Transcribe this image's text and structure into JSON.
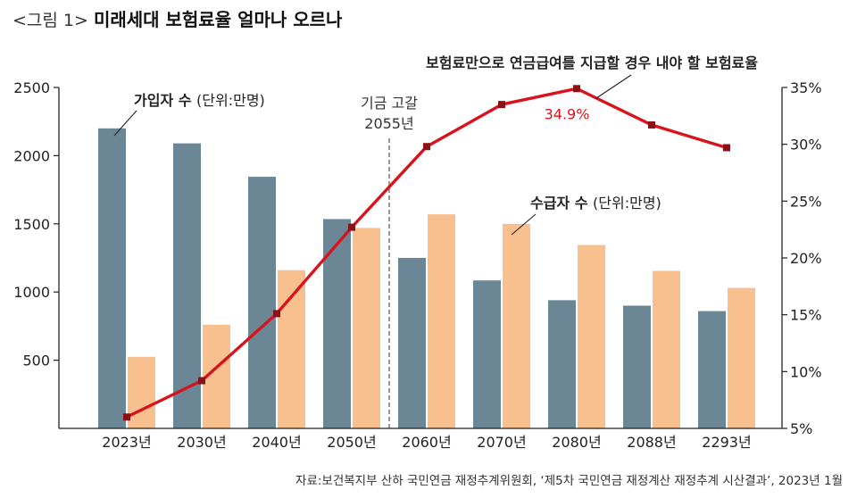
{
  "title": {
    "prefix": "<그림 1>",
    "main": "미래세대 보험료율 얼마나 오르나"
  },
  "source": "자료:보건복지부 산하 국민연금 재정추계위원회, ‘제5차 국민연금 재정계산 재정추계 시산결과’, 2023년 1월",
  "colors": {
    "subscribers": "#6b8796",
    "recipients": "#f7c08e",
    "rate_line": "#d7141d",
    "rate_marker": "#8b1116",
    "highlight_text": "#d7141d",
    "divider": "#9a9a9a"
  },
  "chart_data": {
    "type": "bar",
    "categories": [
      "2023년",
      "2030년",
      "2040년",
      "2050년",
      "2060년",
      "2070년",
      "2080년",
      "2088년",
      "2293년"
    ],
    "series": [
      {
        "name": "가입자 수",
        "unit": "단위:만명",
        "axis": "left",
        "values": [
          2200,
          2090,
          1845,
          1535,
          1250,
          1085,
          940,
          900,
          860
        ]
      },
      {
        "name": "수급자 수",
        "unit": "단위:만명",
        "axis": "left",
        "values": [
          525,
          760,
          1160,
          1470,
          1570,
          1500,
          1345,
          1155,
          1030
        ]
      },
      {
        "name": "보험료만으로 연금급여를 지급할 경우 내야 할 보험료율",
        "type": "line",
        "axis": "right",
        "unit": "%",
        "values": [
          6.0,
          9.2,
          15.1,
          22.7,
          29.8,
          33.5,
          34.9,
          31.7,
          29.7
        ]
      }
    ],
    "left_axis": {
      "ylim": [
        0,
        2500
      ],
      "ticks": [
        500,
        1000,
        1500,
        2000,
        2500
      ]
    },
    "right_axis": {
      "ylim": [
        5,
        35
      ],
      "ticks": [
        "5%",
        "10%",
        "15%",
        "20%",
        "25%",
        "30%",
        "35%"
      ],
      "tick_values": [
        5,
        10,
        15,
        20,
        25,
        30,
        35
      ]
    },
    "annotations": {
      "subscribers_label": "가입자 수",
      "subscribers_unit": "(단위:만명)",
      "recipients_label": "수급자 수",
      "recipients_unit": "(단위:만명)",
      "rate_label": "보험료만으로 연금급여를 지급할 경우 내야 할 보험료율",
      "peak_value": "34.9%",
      "depletion_line1": "기금 고갈",
      "depletion_line2": "2055년",
      "depletion_after_category": "2050년"
    }
  }
}
